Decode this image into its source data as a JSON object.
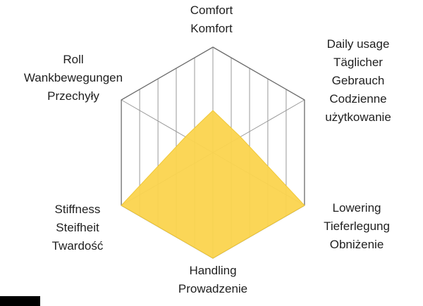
{
  "chart_data": {
    "type": "radar",
    "title": "",
    "max": 1,
    "axes": [
      {
        "id": "comfort",
        "label": "Comfort\nKomfort",
        "value": 0.4
      },
      {
        "id": "daily-usage",
        "label": "Daily usage\nTäglicher\nGebrauch\nCodzienne\nużytkowanie",
        "value": 0.3
      },
      {
        "id": "lowering",
        "label": "Lowering\nTieferlegung\nObniżenie",
        "value": 1.0
      },
      {
        "id": "handling",
        "label": "Handling\nProwadzenie",
        "value": 1.0
      },
      {
        "id": "stiffness",
        "label": "Stiffness\nSteifheit\nTwardość",
        "value": 1.0
      },
      {
        "id": "roll",
        "label": "Roll\nWankbewegungen\nPrzechyły",
        "value": 0.3
      }
    ],
    "grid": {
      "shape": "hexagon",
      "vertical_divisions": 10,
      "color": "#9a9a9a",
      "outline_color": "#6b6b6b"
    },
    "fill_color": "#FBD44E",
    "fill_opacity": 0.95,
    "stroke_color": "#F0C838",
    "background_color": "#ffffff",
    "legend": "none"
  },
  "page": {
    "corner_mark_color": "#000000"
  }
}
